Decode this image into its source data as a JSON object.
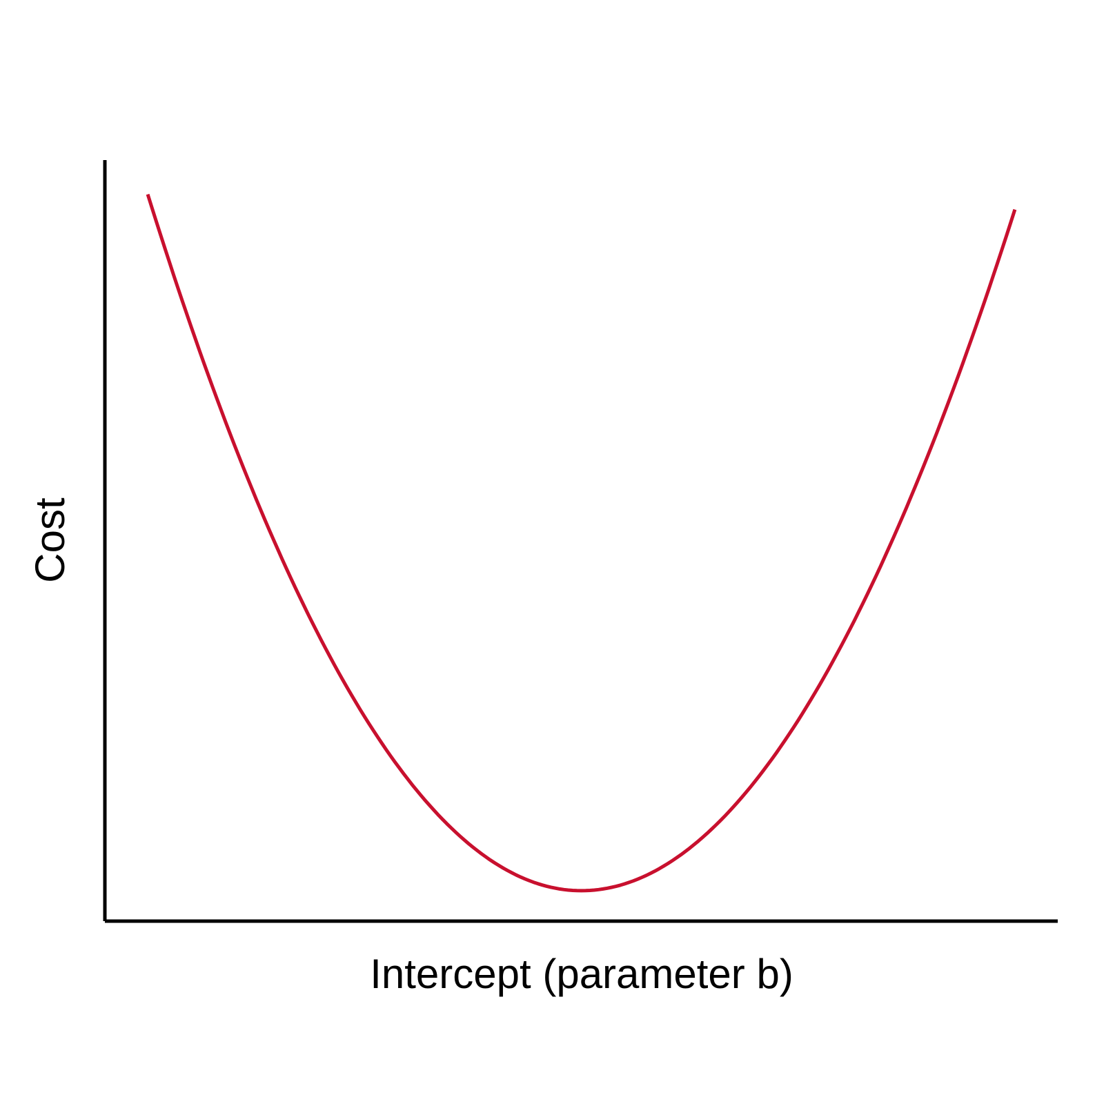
{
  "chart_data": {
    "type": "line",
    "title": "",
    "xlabel": "Intercept (parameter b)",
    "ylabel": "Cost",
    "xlim": [
      0,
      1
    ],
    "ylim": [
      0,
      1
    ],
    "x_ticks": [],
    "y_ticks": [],
    "grid": false,
    "legend": "none",
    "series": [
      {
        "line_color": "#c8102e",
        "minimum": {
          "x": 0.5,
          "y": 0.04
        },
        "x": [
          0.045,
          0.5,
          0.955
        ],
        "y": [
          0.955,
          0.04,
          0.935
        ]
      }
    ]
  }
}
